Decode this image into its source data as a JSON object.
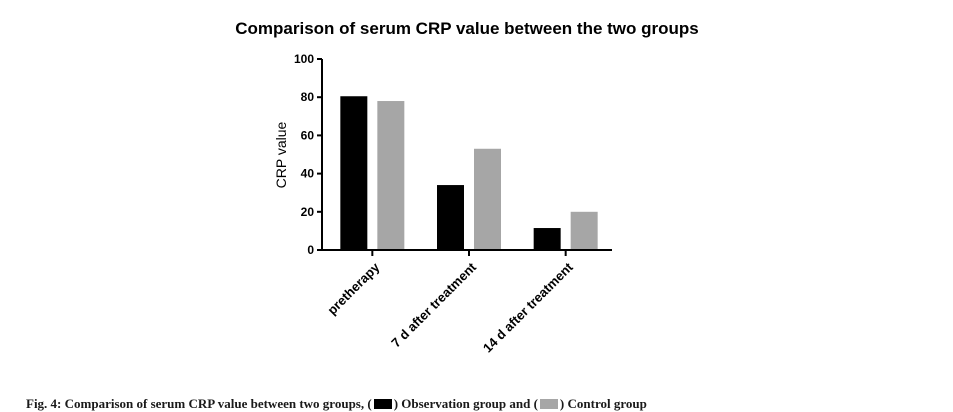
{
  "chart_data": {
    "type": "bar",
    "title": "Comparison of serum CRP value between the two groups",
    "xlabel": "",
    "ylabel": "CRP value",
    "ylim": [
      0,
      100
    ],
    "yticks": [
      "0",
      "20",
      "40",
      "60",
      "80",
      "100"
    ],
    "categories": [
      "pretherapy",
      "7 d after treatment",
      "14 d after treatment"
    ],
    "series": [
      {
        "name": "Observation group",
        "color": "#000000",
        "values": [
          80.5,
          34,
          11.5
        ]
      },
      {
        "name": "Control group",
        "color": "#a6a6a6",
        "values": [
          78,
          53,
          20
        ]
      }
    ],
    "grid": false,
    "legend": "caption"
  },
  "caption": {
    "prefix": "Fig. 4: Comparison of serum CRP value between two groups, (",
    "series1_label": ") Observation group and (",
    "series2_label": ") Control group"
  }
}
